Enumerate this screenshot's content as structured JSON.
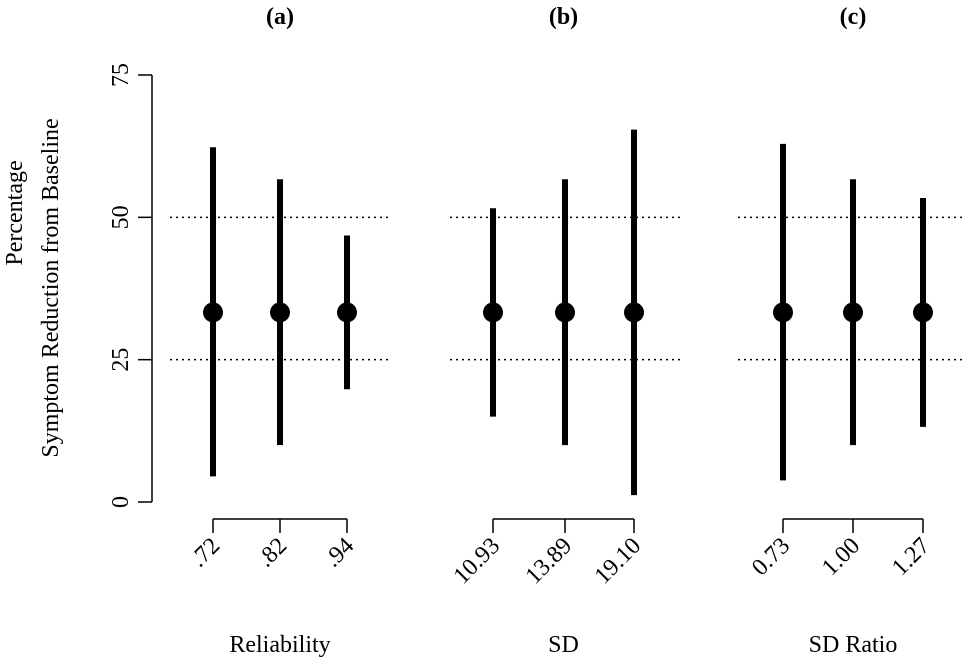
{
  "chart_data": {
    "type": "scatter",
    "ylabel_lines": [
      "Percentage",
      "Symptom Reduction from Baseline"
    ],
    "y_range": [
      0,
      75
    ],
    "y_ticks": [
      0,
      25,
      50,
      75
    ],
    "y_tick_labels": [
      "0",
      "25",
      "50",
      "75"
    ],
    "reference_lines": [
      25,
      50
    ],
    "colors": {
      "marks": "#000000",
      "reference": "#000000"
    },
    "panels": [
      {
        "title": "(a)",
        "xlabel": "Reliability",
        "categories": [
          ".72",
          ".82",
          ".94"
        ],
        "point": [
          33.3,
          33.3,
          33.3
        ],
        "lower": [
          4.5,
          10.0,
          19.8
        ],
        "upper": [
          62.3,
          56.7,
          46.8
        ]
      },
      {
        "title": "(b)",
        "xlabel": "SD",
        "categories": [
          "10.93",
          "13.89",
          "19.10"
        ],
        "point": [
          33.3,
          33.3,
          33.3
        ],
        "lower": [
          15.0,
          10.0,
          1.2
        ],
        "upper": [
          51.6,
          56.7,
          65.4
        ]
      },
      {
        "title": "(c)",
        "xlabel": "SD Ratio",
        "categories": [
          "0.73",
          "1.00",
          "1.27"
        ],
        "point": [
          33.3,
          33.3,
          33.3
        ],
        "lower": [
          3.8,
          10.0,
          13.2
        ],
        "upper": [
          62.9,
          56.7,
          53.4
        ]
      }
    ]
  }
}
